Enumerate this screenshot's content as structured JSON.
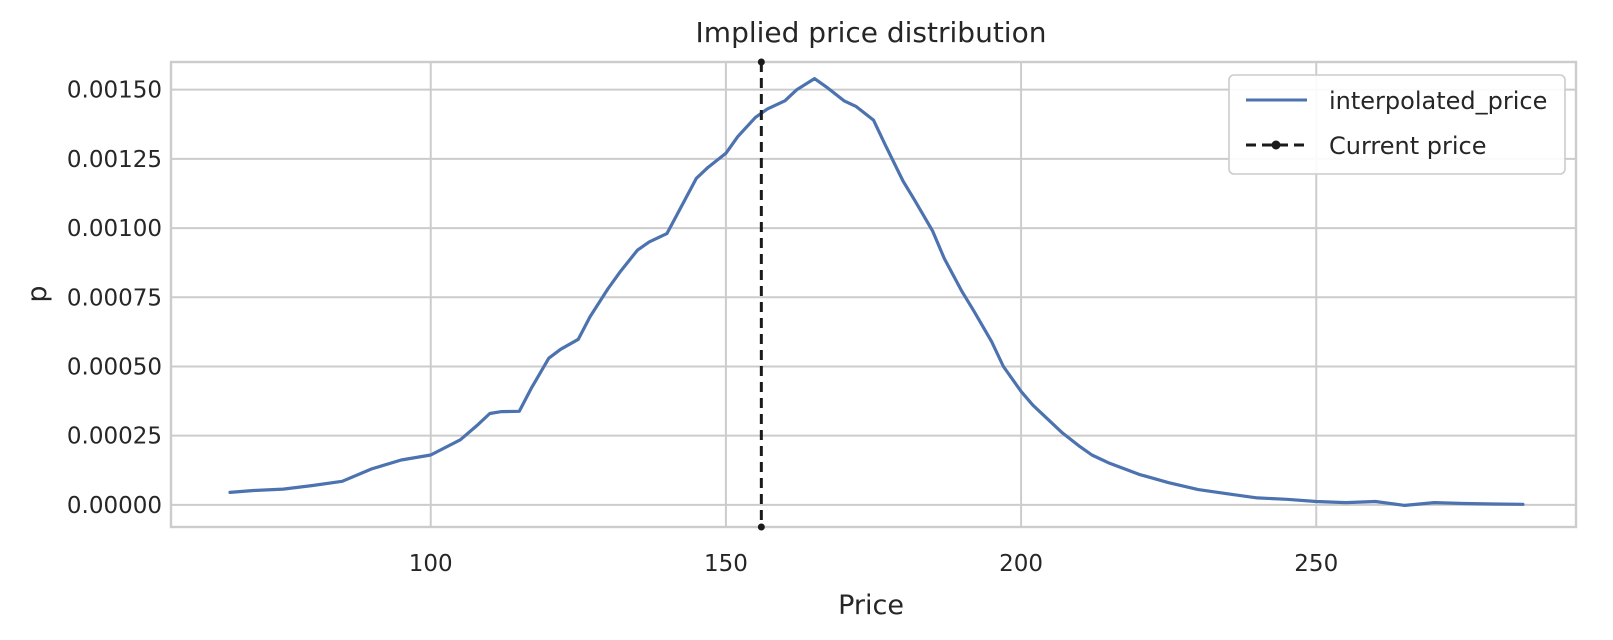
{
  "chart_data": {
    "type": "line",
    "title": "Implied price distribution",
    "xlabel": "Price",
    "ylabel": "p",
    "xlim": [
      56,
      294
    ],
    "ylim": [
      -8e-05,
      0.0016
    ],
    "x_ticks": [
      100,
      150,
      200,
      250
    ],
    "x_tick_labels": [
      "100",
      "150",
      "200",
      "250"
    ],
    "y_ticks": [
      0,
      0.00025,
      0.0005,
      0.00075,
      0.001,
      0.00125,
      0.0015
    ],
    "y_tick_labels": [
      "0.00000",
      "0.00025",
      "0.00050",
      "0.00075",
      "0.00100",
      "0.00125",
      "0.00150"
    ],
    "grid": true,
    "legend_position": "top-right",
    "series": [
      {
        "name": "interpolated_price",
        "color": "#4c72b0",
        "x": [
          66,
          70,
          75,
          80,
          85,
          90,
          95,
          100,
          105,
          108,
          110,
          112,
          115,
          117,
          120,
          122,
          125,
          127,
          130,
          132,
          135,
          137,
          140,
          142,
          145,
          147,
          150,
          152,
          155,
          157,
          160,
          162,
          165,
          167,
          170,
          172,
          175,
          177,
          180,
          182,
          185,
          187,
          190,
          192,
          195,
          197,
          200,
          202,
          205,
          207,
          210,
          212,
          215,
          220,
          225,
          230,
          235,
          240,
          245,
          250,
          255,
          260,
          265,
          270,
          275,
          280,
          285
        ],
        "y": [
          4.5e-05,
          5.2e-05,
          5.7e-05,
          7e-05,
          8.5e-05,
          0.00013,
          0.000162,
          0.00018,
          0.000235,
          0.00029,
          0.00033,
          0.000337,
          0.000338,
          0.00042,
          0.00053,
          0.000562,
          0.000598,
          0.00068,
          0.00078,
          0.00084,
          0.00092,
          0.00095,
          0.00098,
          0.00106,
          0.00118,
          0.00122,
          0.00127,
          0.00133,
          0.0014,
          0.00143,
          0.00146,
          0.0015,
          0.00154,
          0.00151,
          0.00146,
          0.00144,
          0.00139,
          0.0013,
          0.00117,
          0.0011,
          0.00099,
          0.00089,
          0.00077,
          0.0007,
          0.00059,
          0.0005,
          0.00041,
          0.00036,
          0.0003,
          0.00026,
          0.00021,
          0.00018,
          0.00015,
          0.00011,
          8e-05,
          5.5e-05,
          4e-05,
          2.5e-05,
          2e-05,
          1.2e-05,
          8e-06,
          1.2e-05,
          -2e-06,
          8e-06,
          5e-06,
          3e-06,
          2e-06
        ]
      }
    ],
    "reference_lines": [
      {
        "name": "Current price",
        "x": 156,
        "color": "#1a1a1a",
        "style": "dashed",
        "marker": "dot"
      }
    ]
  }
}
